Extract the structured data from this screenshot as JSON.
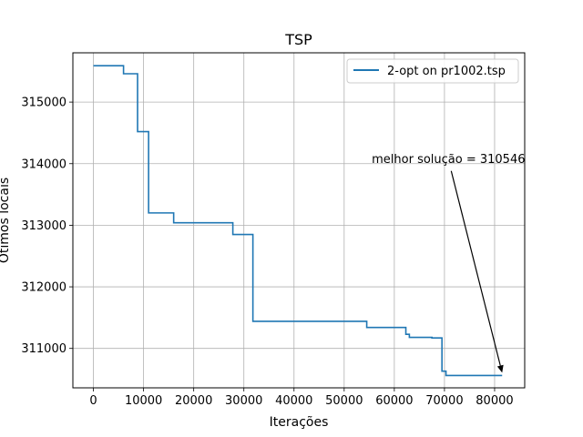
{
  "chart_data": {
    "type": "line",
    "title": "TSP",
    "xlabel": "Iterações",
    "ylabel": "Ótimos locais",
    "xlim": [
      -4100,
      86000
    ],
    "ylim": [
      310360,
      315800
    ],
    "xticks": [
      0,
      10000,
      20000,
      30000,
      40000,
      50000,
      60000,
      70000,
      80000
    ],
    "yticks": [
      311000,
      312000,
      313000,
      314000,
      315000
    ],
    "grid": true,
    "legend_position": "upper right",
    "series": [
      {
        "name": "2-opt on pr1002.tsp",
        "color": "#1f77b4",
        "drawstyle": "steps-post",
        "points": [
          [
            0,
            315590
          ],
          [
            6000,
            315460
          ],
          [
            8800,
            314520
          ],
          [
            11000,
            313200
          ],
          [
            16000,
            313040
          ],
          [
            27800,
            312850
          ],
          [
            31800,
            311440
          ],
          [
            54500,
            311340
          ],
          [
            62300,
            311230
          ],
          [
            63000,
            311180
          ],
          [
            67500,
            311170
          ],
          [
            69500,
            310630
          ],
          [
            70300,
            310560
          ],
          [
            81500,
            310560
          ]
        ]
      }
    ],
    "annotation": {
      "text": "melhor solução = 310546",
      "xy": [
        81500,
        310546
      ],
      "xytext": [
        70800,
        314000
      ]
    }
  }
}
